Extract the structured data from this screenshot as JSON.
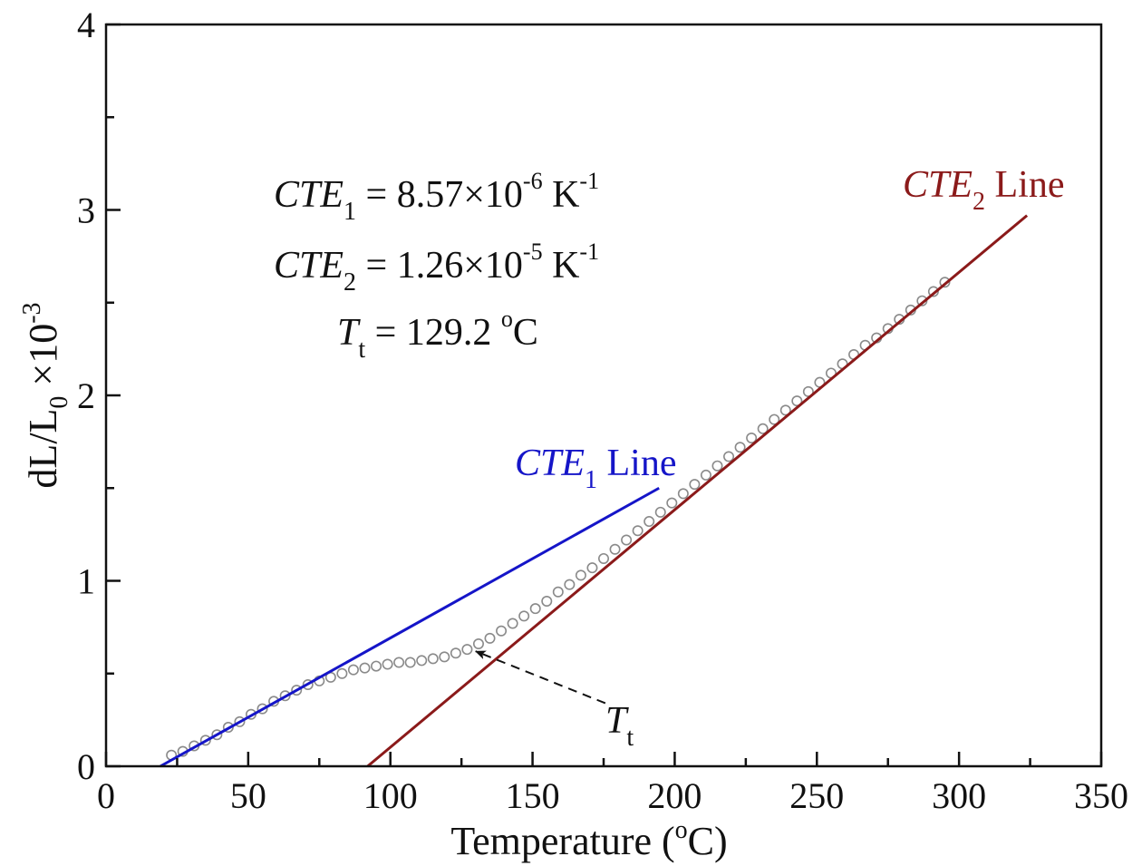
{
  "chart_data": {
    "type": "scatter",
    "title": "",
    "xlabel": "Temperature (oC)",
    "xlabel_parts": {
      "main": "Temperature (",
      "sup": "o",
      "end": "C)"
    },
    "ylabel_parts": {
      "main": "dL/L",
      "sub": "0",
      "mid": " ×10",
      "sup": "-3"
    },
    "xlim": [
      0,
      350
    ],
    "ylim": [
      0,
      4
    ],
    "xticks": [
      "0",
      "50",
      "100",
      "150",
      "200",
      "250",
      "300",
      "350"
    ],
    "yticks": [
      "0",
      "1",
      "2",
      "3",
      "4"
    ],
    "grid": false,
    "series": [
      {
        "name": "measured dL/L0",
        "marker": "open-circle",
        "color": "#8a8a8a",
        "x": [
          23,
          27,
          31,
          35,
          39,
          43,
          47,
          51,
          55,
          59,
          63,
          67,
          71,
          75,
          79,
          83,
          87,
          91,
          95,
          99,
          103,
          107,
          111,
          115,
          119,
          123,
          127,
          131,
          135,
          139,
          143,
          147,
          151,
          155,
          159,
          163,
          167,
          171,
          175,
          179,
          183,
          187,
          191,
          195,
          199,
          203,
          207,
          211,
          215,
          219,
          223,
          227,
          231,
          235,
          239,
          243,
          247,
          251,
          255,
          259,
          263,
          267,
          271,
          275,
          279,
          283,
          287,
          291,
          295
        ],
        "y": [
          0.06,
          0.08,
          0.11,
          0.14,
          0.17,
          0.21,
          0.24,
          0.28,
          0.31,
          0.35,
          0.38,
          0.41,
          0.44,
          0.46,
          0.48,
          0.5,
          0.52,
          0.53,
          0.54,
          0.55,
          0.56,
          0.56,
          0.57,
          0.58,
          0.59,
          0.61,
          0.63,
          0.66,
          0.69,
          0.73,
          0.77,
          0.81,
          0.85,
          0.89,
          0.94,
          0.98,
          1.03,
          1.07,
          1.12,
          1.17,
          1.22,
          1.27,
          1.32,
          1.37,
          1.42,
          1.47,
          1.52,
          1.57,
          1.62,
          1.67,
          1.72,
          1.77,
          1.82,
          1.87,
          1.92,
          1.97,
          2.02,
          2.07,
          2.12,
          2.17,
          2.22,
          2.27,
          2.31,
          2.36,
          2.41,
          2.46,
          2.51,
          2.56,
          2.61
        ]
      },
      {
        "name": "CTE1 Line",
        "type": "line",
        "color": "#1515c8",
        "x": [
          19.1,
          194.5
        ],
        "y": [
          0,
          1.5
        ]
      },
      {
        "name": "CTE2 Line",
        "type": "line",
        "color": "#8b1a1a",
        "x": [
          92,
          323.9
        ],
        "y": [
          0,
          2.97
        ]
      }
    ],
    "arrow": {
      "from": [
        175.6,
        0.34
      ],
      "to": [
        130,
        0.62
      ],
      "style": "dashed"
    },
    "annotations": {
      "cte1_line": {
        "main": "CTE",
        "sub": "1",
        "rest": " Line"
      },
      "cte2_line": {
        "main": "CTE",
        "sub": "2",
        "rest": " Line"
      },
      "cte1": {
        "main": "CTE",
        "sub": "1",
        "eq": " = 8.57×10",
        "sup": "-6",
        "unit": " K",
        "unitsup": "-1"
      },
      "cte2": {
        "main": "CTE",
        "sub": "2",
        "eq": " = 1.26×10",
        "sup": "-5",
        "unit": " K",
        "unitsup": "-1"
      },
      "tt": {
        "main": "T",
        "sub": "t",
        "eq": " = 129.2 ",
        "sup": "o",
        "unit": "C"
      },
      "tt_label": {
        "main": "T",
        "sub": "t"
      }
    }
  }
}
